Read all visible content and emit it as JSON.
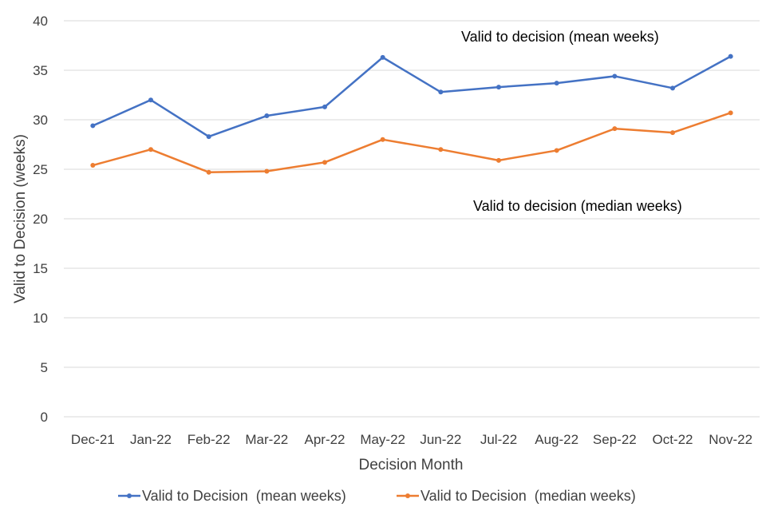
{
  "chart_data": {
    "type": "line",
    "categories": [
      "Dec-21",
      "Jan-22",
      "Feb-22",
      "Mar-22",
      "Apr-22",
      "May-22",
      "Jun-22",
      "Jul-22",
      "Aug-22",
      "Sep-22",
      "Oct-22",
      "Nov-22"
    ],
    "series": [
      {
        "name": "Valid to Decision  (mean weeks)",
        "color": "#4472C4",
        "values": [
          29.4,
          32.0,
          28.3,
          30.4,
          31.3,
          36.3,
          32.8,
          33.3,
          33.7,
          34.4,
          33.2,
          36.4
        ]
      },
      {
        "name": "Valid to Decision  (median weeks)",
        "color": "#ED7D31",
        "values": [
          25.4,
          27.0,
          24.7,
          24.8,
          25.7,
          28.0,
          27.0,
          25.9,
          26.9,
          29.1,
          28.7,
          30.7
        ]
      }
    ],
    "xlabel": "Decision Month",
    "ylabel": "Valid to Decision (weeks)",
    "ylim": [
      0,
      40
    ],
    "yticks": [
      0,
      5,
      10,
      15,
      20,
      25,
      30,
      35,
      40
    ],
    "grid": true,
    "legend_position": "bottom",
    "annotations": [
      {
        "text": "Valid to decision (mean weeks)"
      },
      {
        "text": "Valid to decision (median weeks)"
      }
    ]
  }
}
